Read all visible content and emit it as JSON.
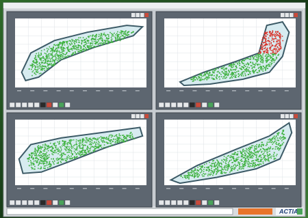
{
  "logo": "ACTIA"
}
